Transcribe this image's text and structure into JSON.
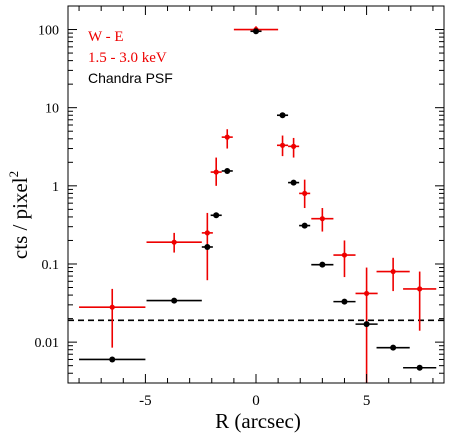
{
  "chart_data": {
    "type": "scatter",
    "title": "",
    "xlabel": "R (arcsec)",
    "ylabel": "cts / pixel",
    "ylabel_superscript": "2",
    "xlim": [
      -8.5,
      8.5
    ],
    "ylim": [
      0.003,
      200
    ],
    "y_scale": "log",
    "grid": false,
    "x_ticks": [
      {
        "value": -5,
        "label": "-5"
      },
      {
        "value": 0,
        "label": "0"
      },
      {
        "value": 5,
        "label": "5"
      }
    ],
    "y_ticks": [
      {
        "value": 0.01,
        "label": "0.01"
      },
      {
        "value": 0.1,
        "label": "0.1"
      },
      {
        "value": 1,
        "label": "1"
      },
      {
        "value": 10,
        "label": "10"
      },
      {
        "value": 100,
        "label": "100"
      }
    ],
    "legend": {
      "placement": "top-left",
      "entries": [
        {
          "text": "W - E",
          "color": "#ee0000"
        },
        {
          "text": "1.5 - 3.0 keV",
          "color": "#ee0000"
        },
        {
          "text": "Chandra PSF",
          "color": "#000000"
        }
      ]
    },
    "reference_line": {
      "y": 0.019,
      "style": "dashed",
      "color": "#000000"
    },
    "series": [
      {
        "color": "#ee0000",
        "points": [
          {
            "x": -6.5,
            "y": 0.028,
            "xerr": 1.5,
            "ylo": 0.0085,
            "yhi": 0.048
          },
          {
            "x": -3.7,
            "y": 0.19,
            "xerr": 1.25,
            "ylo": 0.14,
            "yhi": 0.25
          },
          {
            "x": -2.2,
            "y": 0.25,
            "xerr": 0.25,
            "ylo": 0.062,
            "yhi": 0.45
          },
          {
            "x": -1.8,
            "y": 1.5,
            "xerr": 0.25,
            "ylo": 1.0,
            "yhi": 2.3
          },
          {
            "x": -1.3,
            "y": 4.2,
            "xerr": 0.25,
            "ylo": 3.0,
            "yhi": 5.3
          },
          {
            "x": 0.0,
            "y": 100,
            "xerr": 1.0,
            "ylo": 90,
            "yhi": 110
          },
          {
            "x": 1.2,
            "y": 3.3,
            "xerr": 0.25,
            "ylo": 2.4,
            "yhi": 4.4
          },
          {
            "x": 1.7,
            "y": 3.2,
            "xerr": 0.25,
            "ylo": 2.3,
            "yhi": 4.1
          },
          {
            "x": 2.2,
            "y": 0.8,
            "xerr": 0.25,
            "ylo": 0.52,
            "yhi": 1.2
          },
          {
            "x": 3.0,
            "y": 0.38,
            "xerr": 0.5,
            "ylo": 0.26,
            "yhi": 0.52
          },
          {
            "x": 4.0,
            "y": 0.13,
            "xerr": 0.5,
            "ylo": 0.068,
            "yhi": 0.2
          },
          {
            "x": 5.0,
            "y": 0.042,
            "xerr": 0.5,
            "ylo": 0.003,
            "yhi": 0.09
          },
          {
            "x": 6.2,
            "y": 0.08,
            "xerr": 0.75,
            "ylo": 0.045,
            "yhi": 0.12
          },
          {
            "x": 7.4,
            "y": 0.048,
            "xerr": 0.75,
            "ylo": 0.014,
            "yhi": 0.08
          }
        ]
      },
      {
        "color": "#000000",
        "points": [
          {
            "x": -6.5,
            "y": 0.006,
            "xerr": 1.5
          },
          {
            "x": -3.7,
            "y": 0.034,
            "xerr": 1.25
          },
          {
            "x": -2.2,
            "y": 0.165,
            "xerr": 0.25
          },
          {
            "x": -1.8,
            "y": 0.42,
            "xerr": 0.25
          },
          {
            "x": -1.3,
            "y": 1.55,
            "xerr": 0.25
          },
          {
            "x": 0.0,
            "y": 95,
            "xerr": 0.25
          },
          {
            "x": 1.2,
            "y": 8.0,
            "xerr": 0.25
          },
          {
            "x": 1.7,
            "y": 1.1,
            "xerr": 0.25
          },
          {
            "x": 2.2,
            "y": 0.31,
            "xerr": 0.25
          },
          {
            "x": 3.0,
            "y": 0.098,
            "xerr": 0.5
          },
          {
            "x": 4.0,
            "y": 0.033,
            "xerr": 0.5
          },
          {
            "x": 5.0,
            "y": 0.017,
            "xerr": 0.5
          },
          {
            "x": 6.2,
            "y": 0.0085,
            "xerr": 0.75
          },
          {
            "x": 7.4,
            "y": 0.0047,
            "xerr": 0.75
          }
        ]
      }
    ]
  }
}
